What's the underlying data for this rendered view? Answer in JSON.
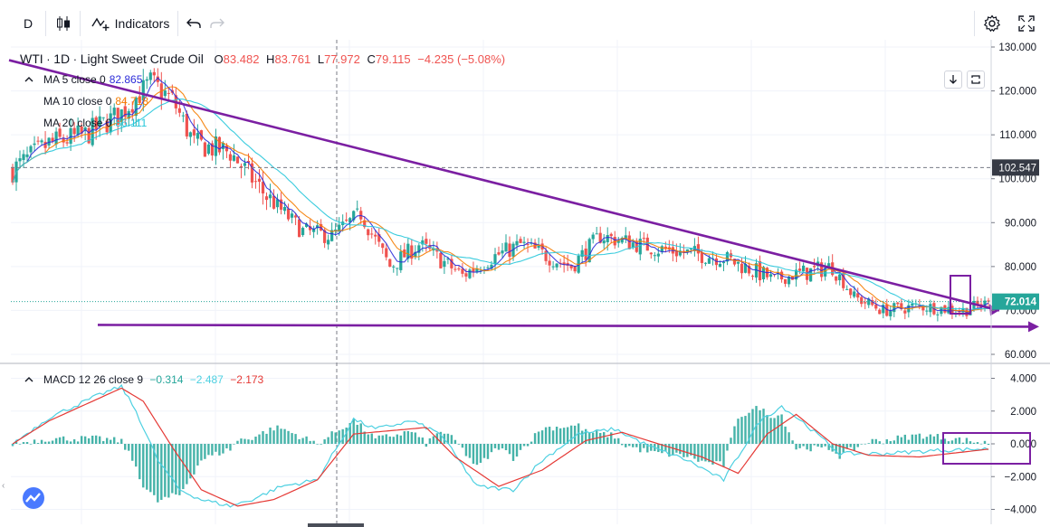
{
  "toolbar": {
    "interval": "D",
    "indicators_label": "Indicators"
  },
  "symbol": {
    "ticker": "WTI",
    "interval": "1D",
    "name": "Light Sweet Crude Oil",
    "open_label": "O",
    "open": "83.482",
    "high_label": "H",
    "high": "83.761",
    "low_label": "L",
    "low": "77.972",
    "close_label": "C",
    "close": "79.115",
    "change": "−4.235 (−5.08%)"
  },
  "ma": [
    {
      "label": "MA 5 close 0",
      "value": "82.865",
      "color": "#2c2cd8"
    },
    {
      "label": "MA 10 close 0",
      "value": "84.718",
      "color": "#f57c00"
    },
    {
      "label": "MA 20 close 0",
      "value": "86.111",
      "color": "#26c6da"
    }
  ],
  "macd": {
    "label": "MACD 12 26 close 9",
    "hist": "−0.314",
    "macd": "−2.487",
    "signal": "−2.173",
    "colors": {
      "hist": "#26a69a",
      "macd": "#4dd0e1",
      "signal": "#e53935"
    }
  },
  "price_axis": {
    "ticks": [
      "130.000",
      "120.000",
      "110.000",
      "100.000",
      "90.000",
      "80.000",
      "70.000",
      "60.000"
    ],
    "crosshair_label": "102.547",
    "last_price_label": "72.014"
  },
  "macd_axis": {
    "ticks": [
      "4.000",
      "2.000",
      "0.000",
      "−2.000",
      "−4.000"
    ]
  },
  "colors": {
    "up": "#26a69a",
    "down": "#ef5350",
    "trend": "#7b1fa2",
    "last_price": "#26a69a"
  },
  "chart_data": [
    {
      "type": "candlestick",
      "title": "WTI · 1D · Light Sweet Crude Oil",
      "ylim": [
        60,
        130
      ],
      "grid": true,
      "sessions": 270,
      "anchors": [
        {
          "i": 0,
          "v": 102
        },
        {
          "i": 10,
          "v": 108
        },
        {
          "i": 20,
          "v": 110
        },
        {
          "i": 30,
          "v": 115
        },
        {
          "i": 38,
          "v": 122
        },
        {
          "i": 44,
          "v": 118
        },
        {
          "i": 50,
          "v": 108
        },
        {
          "i": 60,
          "v": 106
        },
        {
          "i": 70,
          "v": 96
        },
        {
          "i": 80,
          "v": 88
        },
        {
          "i": 88,
          "v": 87
        },
        {
          "i": 96,
          "v": 92
        },
        {
          "i": 104,
          "v": 80
        },
        {
          "i": 112,
          "v": 85
        },
        {
          "i": 124,
          "v": 78
        },
        {
          "i": 132,
          "v": 82
        },
        {
          "i": 140,
          "v": 85
        },
        {
          "i": 154,
          "v": 80
        },
        {
          "i": 162,
          "v": 87
        },
        {
          "i": 178,
          "v": 84
        },
        {
          "i": 196,
          "v": 82
        },
        {
          "i": 210,
          "v": 77
        },
        {
          "i": 226,
          "v": 80
        },
        {
          "i": 232,
          "v": 73
        },
        {
          "i": 240,
          "v": 70
        },
        {
          "i": 250,
          "v": 71
        },
        {
          "i": 262,
          "v": 70
        },
        {
          "i": 270,
          "v": 72
        }
      ],
      "last": 72.014,
      "crosshair": 102.547,
      "trendlines": [
        {
          "from": [
            0,
            127
          ],
          "to": [
            270,
            70
          ]
        },
        {
          "from": [
            30,
            67
          ],
          "to": [
            270,
            67
          ]
        }
      ]
    },
    {
      "type": "line",
      "title": "MACD 12 26 close 9",
      "ylim": [
        -4.8,
        4.8
      ],
      "series": [
        {
          "name": "MACD",
          "anchors": [
            [
              0,
              0
            ],
            [
              10,
              1.6
            ],
            [
              24,
              3.0
            ],
            [
              30,
              3.5
            ],
            [
              34,
              2.0
            ],
            [
              40,
              -1.0
            ],
            [
              46,
              -2.8
            ],
            [
              52,
              -3.4
            ],
            [
              60,
              -3.8
            ],
            [
              66,
              -3.4
            ],
            [
              74,
              -2.6
            ],
            [
              84,
              -2.2
            ],
            [
              94,
              1.5
            ],
            [
              100,
              0.9
            ],
            [
              110,
              1.4
            ],
            [
              118,
              0.6
            ],
            [
              128,
              -2.6
            ],
            [
              138,
              -2.8
            ],
            [
              146,
              -1.0
            ],
            [
              156,
              0.6
            ],
            [
              166,
              0.9
            ],
            [
              176,
              -0.2
            ],
            [
              186,
              -1.0
            ],
            [
              196,
              -2.2
            ],
            [
              206,
              1.4
            ],
            [
              212,
              2.3
            ],
            [
              218,
              1.3
            ],
            [
              228,
              -0.6
            ],
            [
              240,
              -0.6
            ],
            [
              255,
              -0.4
            ],
            [
              270,
              -0.3
            ]
          ]
        },
        {
          "name": "Signal",
          "anchors": [
            [
              0,
              0
            ],
            [
              10,
              1.4
            ],
            [
              24,
              2.8
            ],
            [
              30,
              3.4
            ],
            [
              36,
              2.6
            ],
            [
              44,
              -0.2
            ],
            [
              52,
              -2.8
            ],
            [
              62,
              -3.8
            ],
            [
              72,
              -3.4
            ],
            [
              84,
              -2.2
            ],
            [
              94,
              0.6
            ],
            [
              104,
              0.8
            ],
            [
              114,
              1.0
            ],
            [
              122,
              -0.8
            ],
            [
              134,
              -2.6
            ],
            [
              146,
              -1.6
            ],
            [
              158,
              0.2
            ],
            [
              168,
              0.7
            ],
            [
              178,
              0.0
            ],
            [
              190,
              -0.8
            ],
            [
              200,
              -1.8
            ],
            [
              208,
              0.6
            ],
            [
              216,
              1.8
            ],
            [
              226,
              0.0
            ],
            [
              236,
              -0.7
            ],
            [
              250,
              -0.8
            ],
            [
              270,
              -0.3
            ]
          ]
        }
      ]
    }
  ]
}
